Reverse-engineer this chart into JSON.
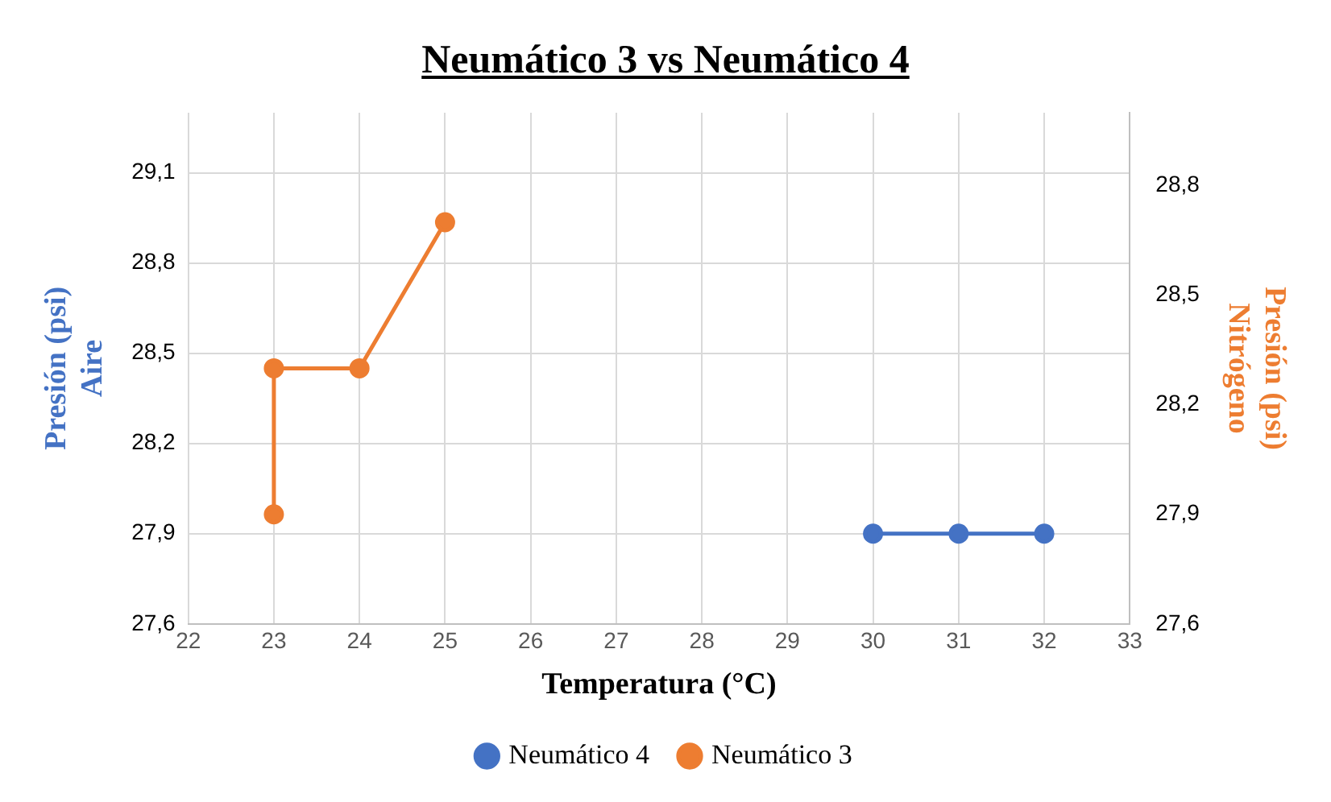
{
  "chart_data": {
    "type": "line",
    "title": "Neumático 3 vs Neumático 4",
    "xlabel": "Temperatura (°C)",
    "ylabel": "Presión (psi)\nAire",
    "y2label": "Presión (psi)\nNitrógeno",
    "series": [
      {
        "name": "Neumático 4",
        "color": "#4472c4",
        "x": [
          30,
          31,
          32
        ],
        "values": [
          27.9,
          27.9,
          27.9
        ]
      },
      {
        "name": "Neumático 3",
        "color": "#ed7d31",
        "x": [
          23,
          23,
          24,
          25
        ],
        "values": [
          27.9,
          28.3,
          28.3,
          28.7
        ],
        "axis": "y2"
      }
    ],
    "xlim": [
      22,
      33
    ],
    "xticks": [
      22,
      23,
      24,
      25,
      26,
      27,
      28,
      29,
      30,
      31,
      32,
      33
    ],
    "ylim": [
      27.6,
      29.3
    ],
    "yticks": [
      {
        "value": 27.6,
        "label": "27,6"
      },
      {
        "value": 27.9,
        "label": "27,9"
      },
      {
        "value": 28.2,
        "label": "28,2"
      },
      {
        "value": 28.5,
        "label": "28,5"
      },
      {
        "value": 28.8,
        "label": "28,8"
      },
      {
        "value": 29.1,
        "label": "29,1"
      }
    ],
    "y2lim": [
      27.6,
      29.0
    ],
    "y2ticks": [
      {
        "value": 27.6,
        "label": "27,6"
      },
      {
        "value": 27.9,
        "label": "27,9"
      },
      {
        "value": 28.2,
        "label": "28,2"
      },
      {
        "value": 28.5,
        "label": "28,5"
      },
      {
        "value": 28.8,
        "label": "28,8"
      }
    ],
    "grid": true,
    "legend": "bottom",
    "marker": "circle",
    "line_style": "solid"
  }
}
